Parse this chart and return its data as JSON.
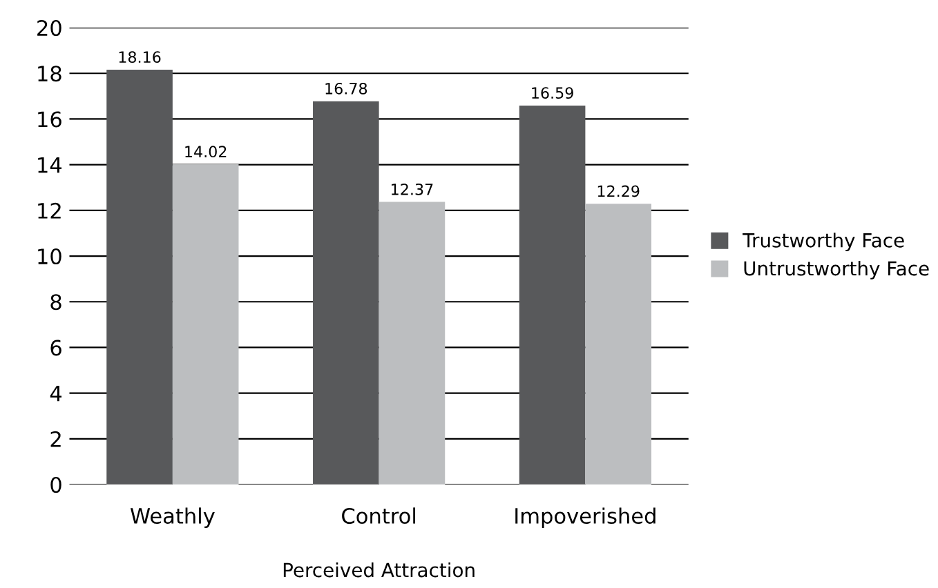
{
  "chart_data": {
    "type": "bar",
    "xlabel": "Perceived Attraction",
    "categories": [
      "Weathly",
      "Control",
      "Impoverished"
    ],
    "series": [
      {
        "name": "Trustworthy Face",
        "color": "#58595b",
        "values": [
          18.16,
          16.78,
          16.59
        ]
      },
      {
        "name": "Untrustworthy Face",
        "color": "#bcbec0",
        "values": [
          14.02,
          12.37,
          12.29
        ]
      }
    ],
    "ylim": [
      0,
      20
    ],
    "yticks": [
      0,
      2,
      4,
      6,
      8,
      10,
      12,
      14,
      16,
      18,
      20
    ],
    "grid": "y",
    "legend": "right",
    "data_labels": true
  }
}
